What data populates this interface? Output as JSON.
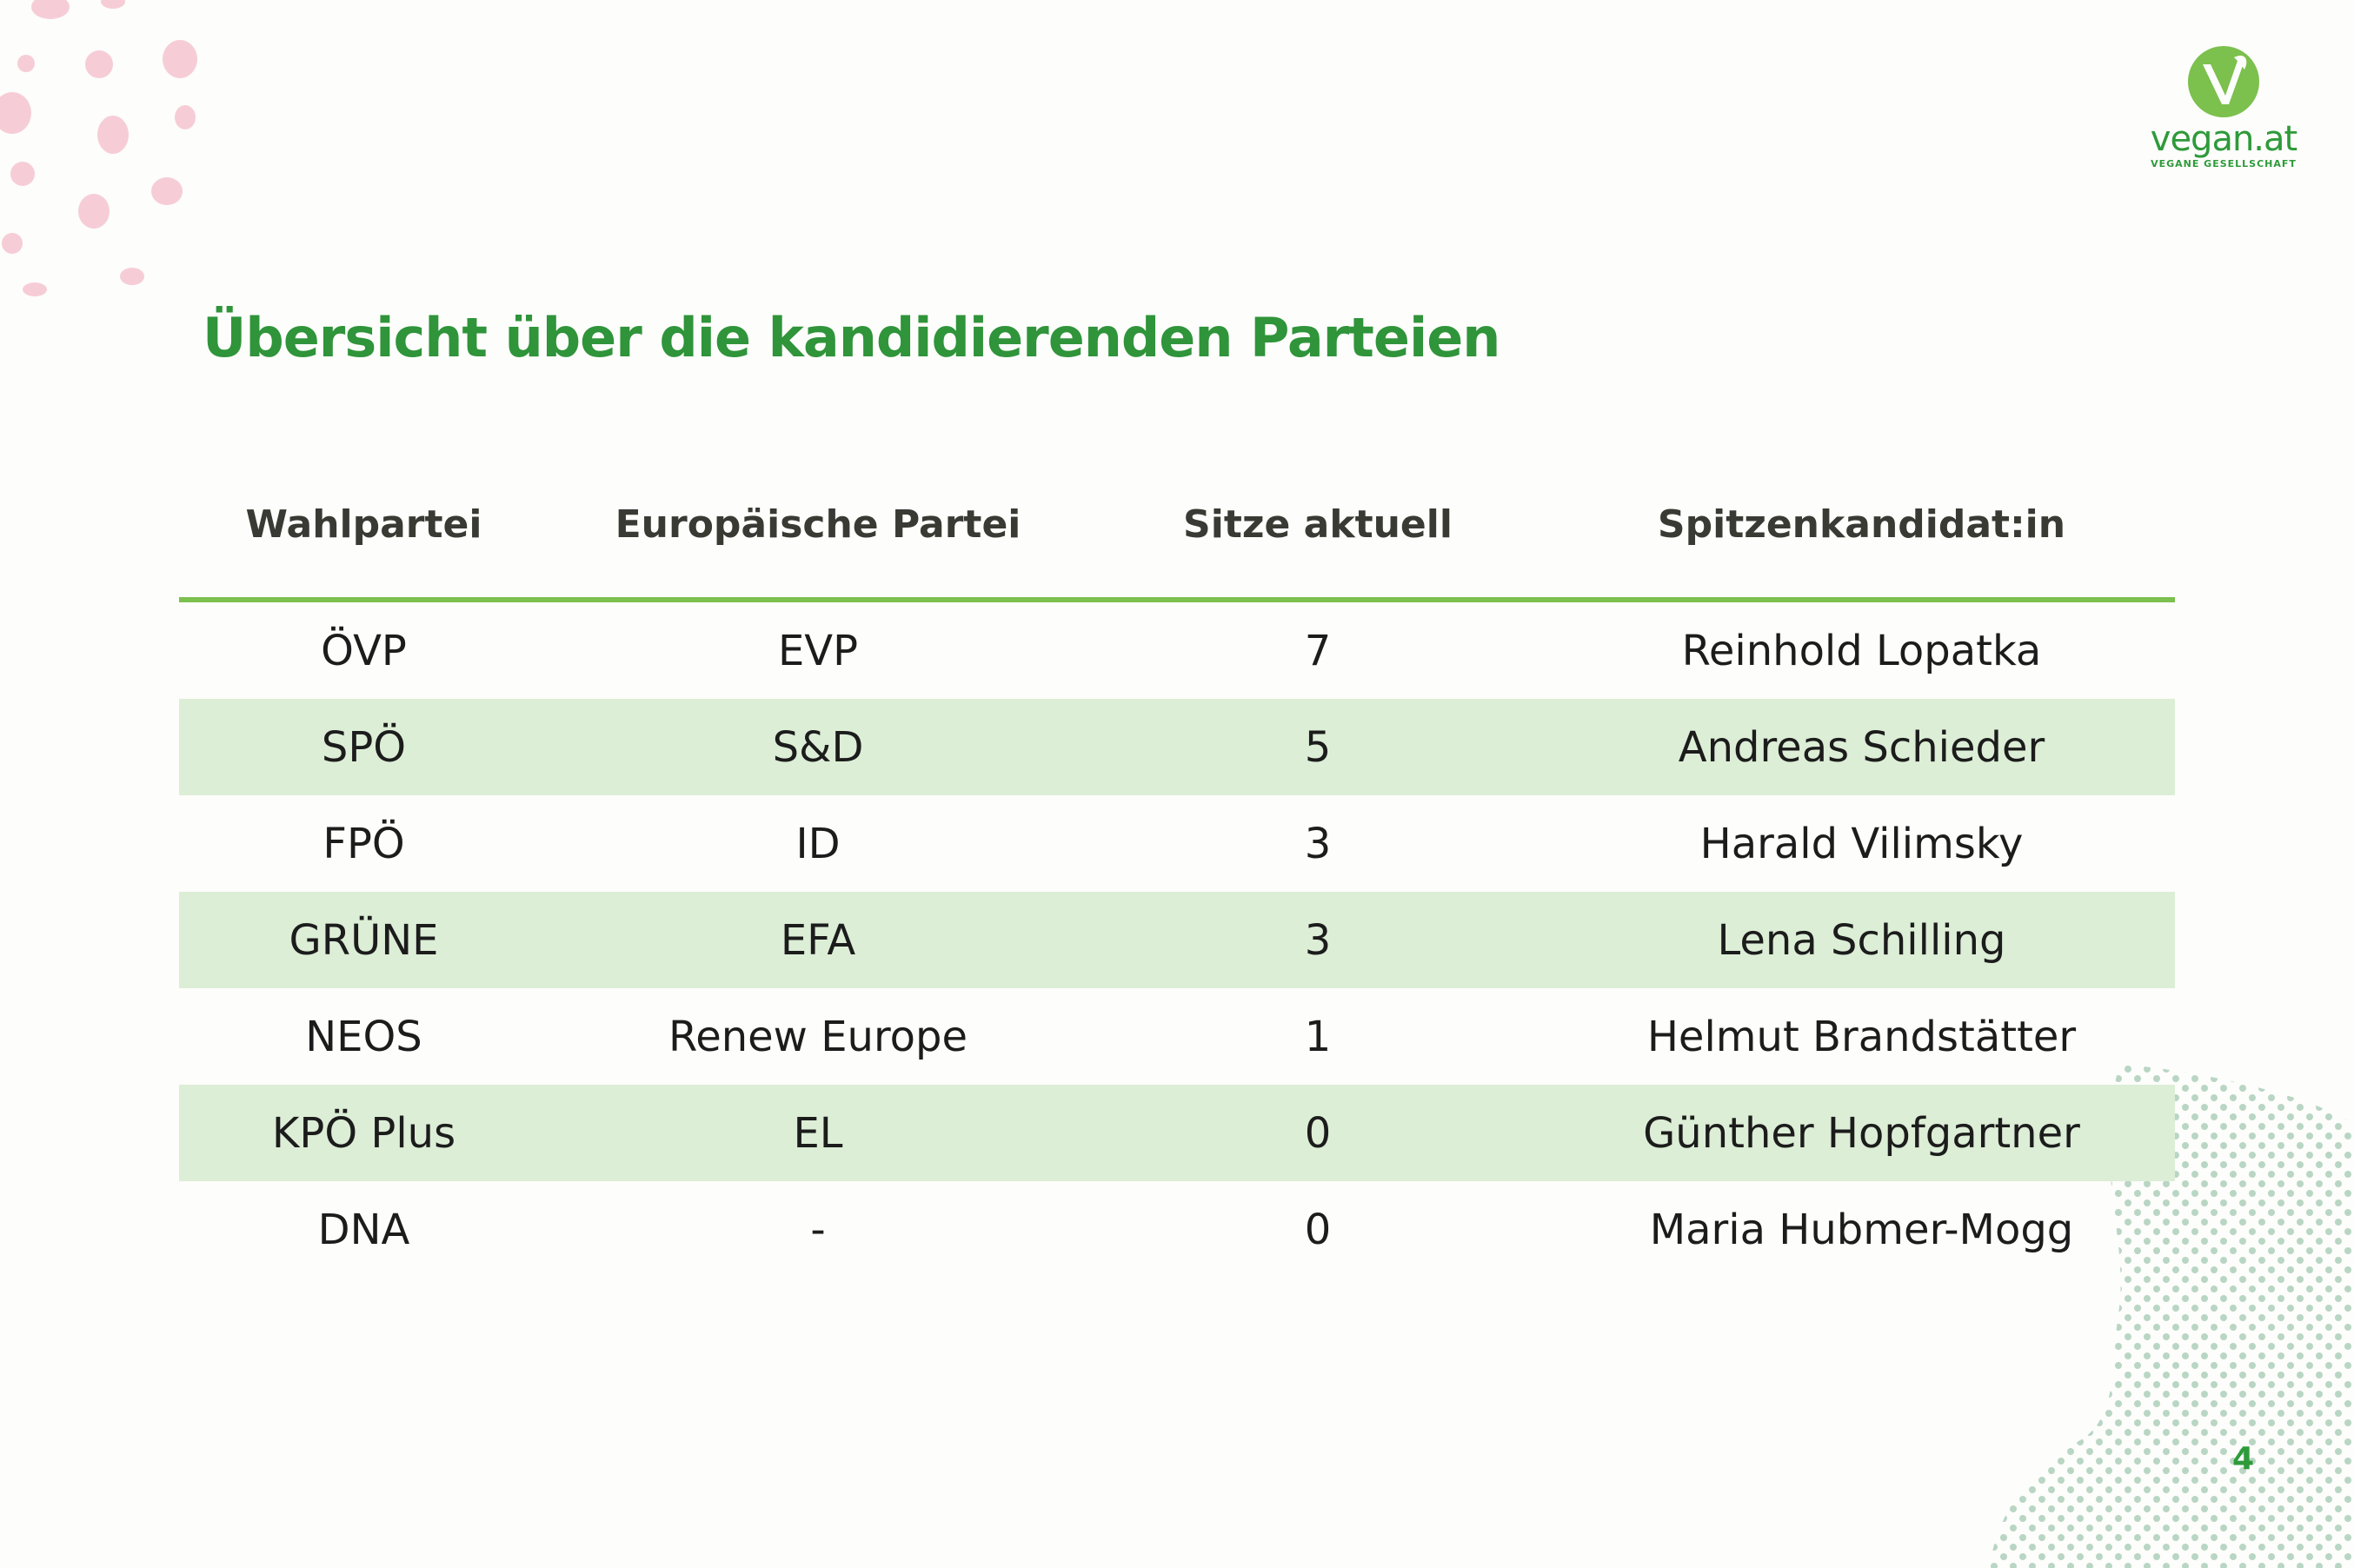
{
  "logo": {
    "name": "vegan.at",
    "tagline": "VEGANE GESELLSCHAFT"
  },
  "title": "Übersicht über die kandidierenden Parteien",
  "table": {
    "headers": [
      "Wahlpartei",
      "Europäische Partei",
      "Sitze aktuell",
      "Spitzenkandidat:in"
    ],
    "rows": [
      [
        "ÖVP",
        "EVP",
        "7",
        "Reinhold Lopatka"
      ],
      [
        "SPÖ",
        "S&D",
        "5",
        "Andreas Schieder"
      ],
      [
        "FPÖ",
        "ID",
        "3",
        "Harald Vilimsky"
      ],
      [
        "GRÜNE",
        "EFA",
        "3",
        "Lena Schilling"
      ],
      [
        "NEOS",
        "Renew Europe",
        "1",
        "Helmut Brandstätter"
      ],
      [
        "KPÖ Plus",
        "EL",
        "0",
        "Günther Hopfgartner"
      ],
      [
        "DNA",
        "-",
        "0",
        "Maria Hubmer-Mogg"
      ]
    ]
  },
  "page_number": "4",
  "colors": {
    "title_green": "#2f943a",
    "header_rule_green": "#7cc04e",
    "stripe_green": "#dceed6",
    "pink_dots": "#f6cdd7",
    "dot_pattern": "#b9d6c4"
  }
}
